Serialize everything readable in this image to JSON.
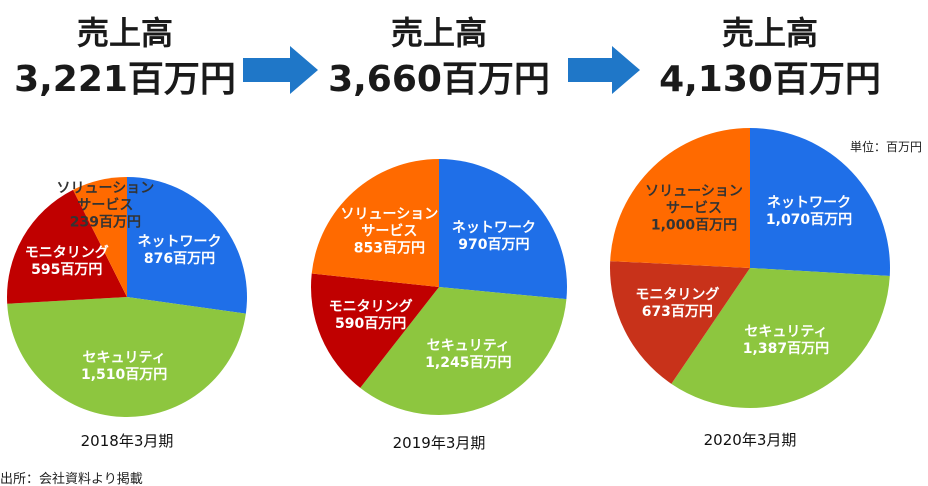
{
  "chart_data": [
    {
      "type": "pie",
      "title": "売上高",
      "subtitle": "3,221百万円",
      "caption": "2018年3月期",
      "categories": [
        "ネットワーク",
        "セキュリティ",
        "モニタリング",
        "ソリューション\nサービス"
      ],
      "values": [
        876,
        1510,
        595,
        239
      ],
      "value_labels": [
        "876百万円",
        "1,510百万円",
        "595百万円",
        "239百万円"
      ],
      "colors": [
        "#1f6fe8",
        "#8dc63f",
        "#c00000",
        "#ff6a00"
      ],
      "label_colors": [
        "#ffffff",
        "#ffffff",
        "#ffffff",
        "#333333"
      ]
    },
    {
      "type": "pie",
      "title": "売上高",
      "subtitle": "3,660百万円",
      "caption": "2019年3月期",
      "categories": [
        "ネットワーク",
        "セキュリティ",
        "モニタリング",
        "ソリューション\nサービス"
      ],
      "values": [
        970,
        1245,
        590,
        853
      ],
      "value_labels": [
        "970百万円",
        "1,245百万円",
        "590百万円",
        "853百万円"
      ],
      "colors": [
        "#1f6fe8",
        "#8dc63f",
        "#c00000",
        "#ff6a00"
      ],
      "label_colors": [
        "#ffffff",
        "#ffffff",
        "#ffffff",
        "#ffffff"
      ]
    },
    {
      "type": "pie",
      "title": "売上高",
      "subtitle": "4,130百万円",
      "caption": "2020年3月期",
      "categories": [
        "ネットワーク",
        "セキュリティ",
        "モニタリング",
        "ソリューション\nサービス"
      ],
      "values": [
        1070,
        1387,
        673,
        1000
      ],
      "value_labels": [
        "1,070百万円",
        "1,387百万円",
        "673百万円",
        "1,000百万円"
      ],
      "colors": [
        "#1f6fe8",
        "#8dc63f",
        "#c8321a",
        "#ff6a00"
      ],
      "label_colors": [
        "#ffffff",
        "#ffffff",
        "#ffffff",
        "#333333"
      ]
    }
  ],
  "unit_note": "単位：百万円",
  "source": "出所：会社資料より掲載"
}
